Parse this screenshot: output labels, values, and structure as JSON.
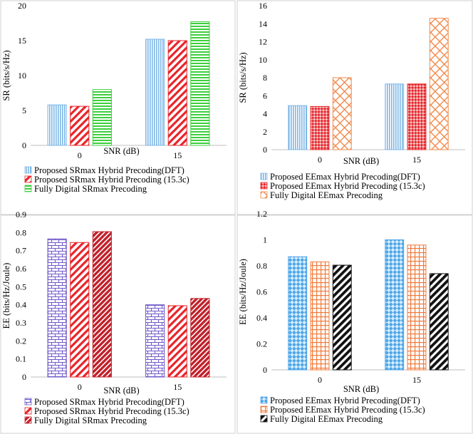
{
  "chart_data": [
    {
      "type": "bar",
      "categories": [
        "0",
        "15"
      ],
      "series": [
        {
          "name": "Proposed SRmax Hybrid Precoding(DFT)",
          "values": [
            5.8,
            15.2
          ],
          "color": "#7fb7e6",
          "pattern": "vlines"
        },
        {
          "name": "Proposed SRmax Hybrid Precoding (15.3c)",
          "values": [
            5.6,
            15.0
          ],
          "color": "#e8242a",
          "pattern": "diag"
        },
        {
          "name": "Fully Digital SRmax Precoding",
          "values": [
            8.0,
            17.7
          ],
          "color": "#3dcf3d",
          "pattern": "hlines"
        }
      ],
      "title": "",
      "xlabel": "SNR (dB)",
      "ylabel": "SR (bits/s/Hz)",
      "ylim": [
        0,
        20
      ],
      "yticks": [
        "0",
        "5",
        "10",
        "15",
        "20"
      ],
      "grid": false,
      "legend_position": "bottom"
    },
    {
      "type": "bar",
      "categories": [
        "0",
        "15"
      ],
      "series": [
        {
          "name": "Proposed EEmax Hybrid Precoding(DFT)",
          "values": [
            4.9,
            7.3
          ],
          "color": "#7fb7e6",
          "pattern": "vlines"
        },
        {
          "name": "Proposed EEmax Hybrid Precoding (15.3c)",
          "values": [
            4.8,
            7.3
          ],
          "color": "#e8242a",
          "pattern": "checker"
        },
        {
          "name": "Fully Digital EEmax Precoding",
          "values": [
            8.0,
            14.6
          ],
          "color": "#f08a4b",
          "pattern": "diamond"
        }
      ],
      "title": "",
      "xlabel": "SNR (dB)",
      "ylabel": "SR (bits/s/Hz)",
      "ylim": [
        0,
        16
      ],
      "yticks": [
        "0",
        "2",
        "4",
        "6",
        "8",
        "10",
        "12",
        "14",
        "16"
      ],
      "grid": false,
      "legend_position": "bottom"
    },
    {
      "type": "bar",
      "categories": [
        "0",
        "15"
      ],
      "series": [
        {
          "name": "Proposed SRmax Hybrid Precoding(DFT)",
          "values": [
            0.765,
            0.4
          ],
          "color": "#6f58c9",
          "pattern": "brick"
        },
        {
          "name": "Proposed SRmax Hybrid Precoding (15.3c)",
          "values": [
            0.745,
            0.395
          ],
          "color": "#e8242a",
          "pattern": "diag"
        },
        {
          "name": "Fully Digital SRmax Precoding",
          "values": [
            0.805,
            0.435
          ],
          "color": "#c0202a",
          "pattern": "diagdense"
        }
      ],
      "title": "",
      "xlabel": "SNR (dB)",
      "ylabel": "EE (bits/Hz/Joule)",
      "ylim": [
        0,
        0.9
      ],
      "yticks": [
        "0",
        "0.1",
        "0.2",
        "0.3",
        "0.4",
        "0.5",
        "0.6",
        "0.7",
        "0.8",
        "0.9"
      ],
      "grid": false,
      "legend_position": "bottom"
    },
    {
      "type": "bar",
      "categories": [
        "0",
        "15"
      ],
      "series": [
        {
          "name": "Proposed EEmax Hybrid Precoding(DFT)",
          "values": [
            0.87,
            1.0
          ],
          "color": "#4ea6e8",
          "pattern": "diamondfill"
        },
        {
          "name": "Proposed EEmax Hybrid Precoding (15.3c)",
          "values": [
            0.83,
            0.96
          ],
          "color": "#f07a3a",
          "pattern": "grid"
        },
        {
          "name": "Fully Digital EEmax Precoding",
          "values": [
            0.805,
            0.74
          ],
          "color": "#111111",
          "pattern": "diagthick"
        }
      ],
      "title": "",
      "xlabel": "SNR (dB)",
      "ylabel": "EE (bits/Hz/Joule)",
      "ylim": [
        0,
        1.2
      ],
      "yticks": [
        "0",
        "0.2",
        "0.4",
        "0.6",
        "0.8",
        "1",
        "1.2"
      ],
      "grid": false,
      "legend_position": "bottom"
    }
  ]
}
